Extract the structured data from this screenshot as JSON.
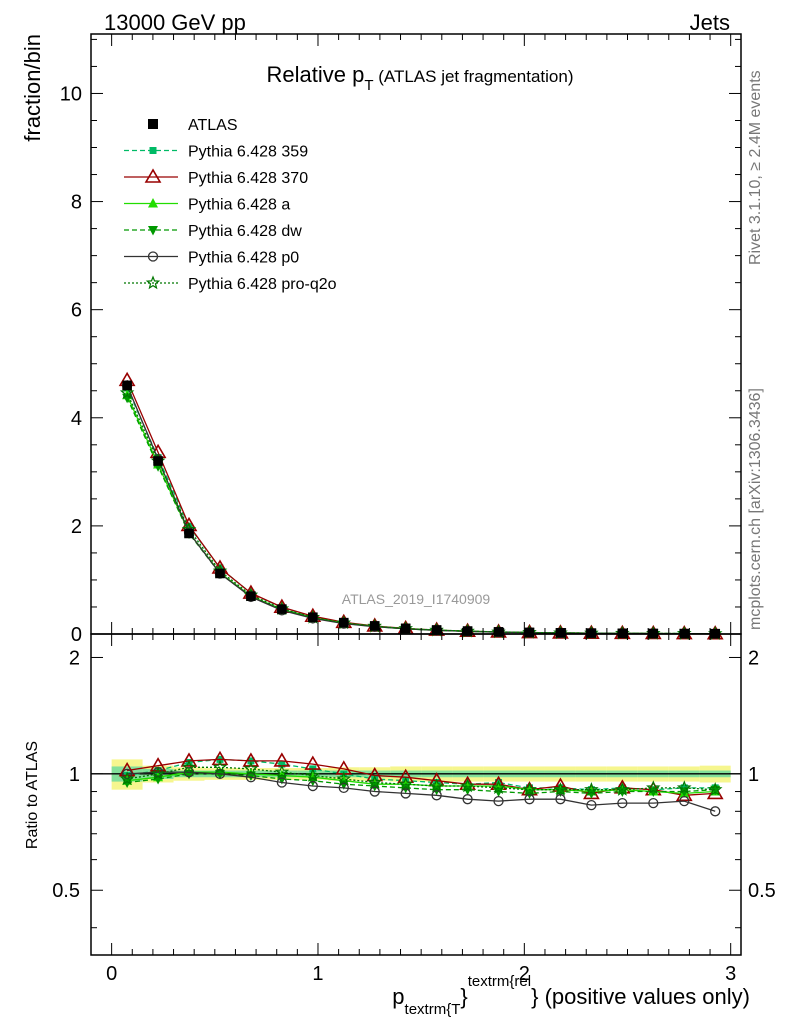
{
  "header": {
    "left": "13000 GeV pp",
    "right": "Jets"
  },
  "side_labels": {
    "rivet": "Rivet 3.1.10, ≥ 2.4M events",
    "mcplots": "mcplots.cern.ch [arXiv:1306.3436]"
  },
  "chart_data": {
    "type": "line",
    "title_main": "Relative p",
    "title_sub": "T",
    "title_rest": " (ATLAS jet fragmentation)",
    "watermark": "ATLAS_2019_I1740909",
    "xlabel_p": "p",
    "xlabel_sub": "textrm{T",
    "xlabel_brace": "}",
    "xlabel_sup": "textrm{rel",
    "xlabel_rest": "} (positive values only)",
    "ylabel": "fraction/bin",
    "ratio_ylabel": "Ratio to ATLAS",
    "xlim": [
      -0.1,
      3.05
    ],
    "ylim": [
      0,
      11.1
    ],
    "ratio_ylim": [
      0.34,
      2.3
    ],
    "x_ticks": [
      "0",
      "1",
      "2",
      "3"
    ],
    "y_ticks": [
      "0",
      "2",
      "4",
      "6",
      "8",
      "10"
    ],
    "ratio_ticks": [
      "0.5",
      "1",
      "2"
    ],
    "x": [
      0.075,
      0.225,
      0.375,
      0.525,
      0.675,
      0.825,
      0.975,
      1.125,
      1.275,
      1.425,
      1.575,
      1.725,
      1.875,
      2.025,
      2.175,
      2.325,
      2.475,
      2.625,
      2.775,
      2.925
    ],
    "reference": {
      "name": "ATLAS",
      "values": [
        4.6,
        3.2,
        1.86,
        1.12,
        0.7,
        0.46,
        0.31,
        0.21,
        0.15,
        0.105,
        0.075,
        0.055,
        0.04,
        0.03,
        0.022,
        0.017,
        0.013,
        0.01,
        0.008,
        0.006
      ]
    },
    "series": [
      {
        "name": "Pythia 6.428 359",
        "color": "#00bb66",
        "ratio": [
          0.99,
          1.02,
          1.07,
          1.09,
          1.08,
          1.06,
          1.03,
          1.0,
          0.97,
          0.96,
          0.95,
          0.94,
          0.95,
          0.92,
          0.92,
          0.91,
          0.92,
          0.91,
          0.92,
          0.92
        ]
      },
      {
        "name": "Pythia 6.428 370",
        "color": "#990000",
        "ratio": [
          1.02,
          1.05,
          1.08,
          1.09,
          1.08,
          1.08,
          1.06,
          1.03,
          0.99,
          0.98,
          0.96,
          0.94,
          0.94,
          0.91,
          0.93,
          0.89,
          0.92,
          0.91,
          0.88,
          0.89
        ]
      },
      {
        "name": "Pythia 6.428 a",
        "color": "#22dd00",
        "ratio": [
          0.96,
          0.98,
          1.01,
          1.01,
          1.0,
          0.99,
          0.98,
          0.96,
          0.94,
          0.94,
          0.93,
          0.93,
          0.93,
          0.91,
          0.91,
          0.9,
          0.91,
          0.9,
          0.89,
          0.9
        ]
      },
      {
        "name": "Pythia 6.428 dw",
        "color": "#009900",
        "ratio": [
          0.95,
          0.97,
          1.0,
          1.0,
          0.99,
          0.97,
          0.96,
          0.94,
          0.93,
          0.92,
          0.91,
          0.91,
          0.9,
          0.89,
          0.9,
          0.89,
          0.9,
          0.9,
          0.9,
          0.91
        ]
      },
      {
        "name": "Pythia 6.428 p0",
        "color": "#333333",
        "ratio": [
          1.0,
          1.01,
          1.01,
          1.0,
          0.98,
          0.95,
          0.93,
          0.92,
          0.9,
          0.89,
          0.88,
          0.86,
          0.85,
          0.86,
          0.86,
          0.83,
          0.84,
          0.84,
          0.85,
          0.8
        ]
      },
      {
        "name": "Pythia 6.428 pro-q2o",
        "color": "#007700",
        "ratio": [
          0.97,
          1.0,
          1.04,
          1.04,
          1.03,
          1.01,
          0.99,
          0.97,
          0.95,
          0.94,
          0.93,
          0.93,
          0.92,
          0.91,
          0.91,
          0.91,
          0.91,
          0.92,
          0.92,
          0.91
        ]
      }
    ],
    "ratio_band": {
      "inner": [
        0.045,
        0.03,
        0.02,
        0.02,
        0.02,
        0.02,
        0.02,
        0.02,
        0.02,
        0.02,
        0.02,
        0.02,
        0.02,
        0.02,
        0.02,
        0.02,
        0.02,
        0.02,
        0.02,
        0.02
      ],
      "outer": [
        0.09,
        0.05,
        0.04,
        0.035,
        0.035,
        0.035,
        0.035,
        0.04,
        0.04,
        0.045,
        0.045,
        0.045,
        0.045,
        0.045,
        0.045,
        0.045,
        0.045,
        0.045,
        0.045,
        0.05
      ]
    }
  }
}
